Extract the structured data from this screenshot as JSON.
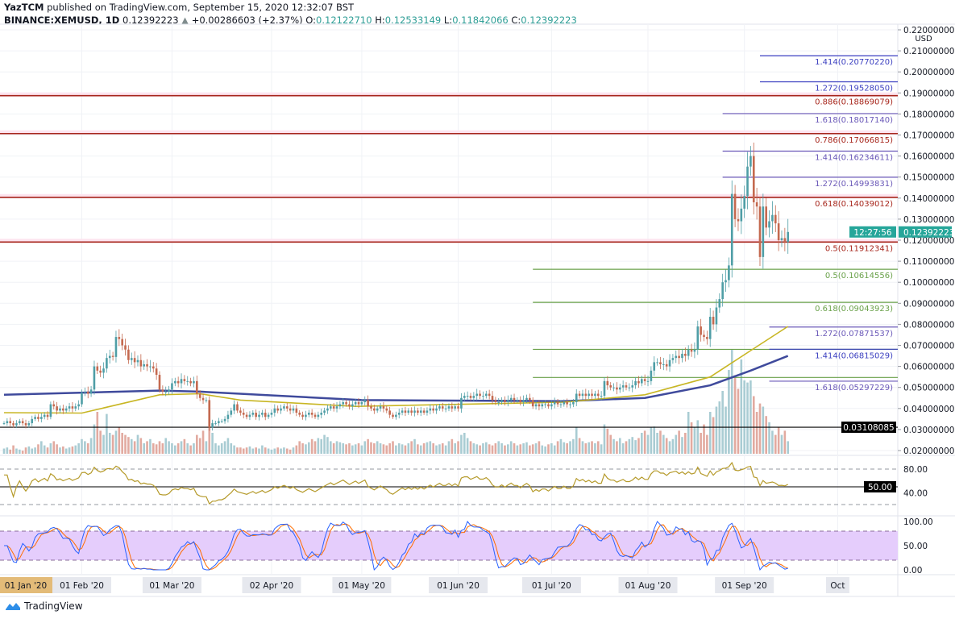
{
  "header": {
    "author": "YazTCM",
    "published": " published on TradingView.com, September 15, 2020 12:32:07 BST",
    "symbol": "BINANCE:XEMUSD, 1D",
    "last": "0.12392223",
    "change_icon": "triangle-up-icon",
    "change_glyph": "▲",
    "change": "+0.00286603 (+2.37%)",
    "o_label": "O:",
    "o": "0.12122710",
    "h_label": "H:",
    "h": "0.12533149",
    "l_label": "L:",
    "l": "0.11842066",
    "c_label": "C:",
    "c": "0.12392223"
  },
  "footer": {
    "brand": "TradingView"
  },
  "colors": {
    "up": "#4f9ea6",
    "down": "#c4694f",
    "vol_up": "#a9ccd3",
    "vol_down": "#e2aaa0",
    "ma_long": "#3f4a9c",
    "ma_short": "#c8b624",
    "rsi": "#b59a2a",
    "stoch_k": "#2962ff",
    "stoch_d": "#ff6d00",
    "stoch_band": "#e5cdfc",
    "fib_red": "#a7261c",
    "fib_green": "#6aa14a",
    "fib_blue": "#3b3fc0",
    "fib_purple": "#6a58b8",
    "last_price_tag": "#26a69a",
    "support_tag": "#000000"
  },
  "chart_data": [
    {
      "type": "candlestick",
      "title": "",
      "start_date": "2020-01-07",
      "interval": "1D",
      "ylabel": "USD",
      "ylim": [
        0.02,
        0.22
      ],
      "y_ticks": [
        "0.22000000",
        "0.21000000",
        "0.20000000",
        "0.19000000",
        "0.18000000",
        "0.17000000",
        "0.16000000",
        "0.15000000",
        "0.14000000",
        "0.13000000",
        "0.12000000",
        "0.11000000",
        "0.10000000",
        "0.09000000",
        "0.08000000",
        "0.07000000",
        "0.06000000",
        "0.05000000",
        "0.04000000",
        "0.03000000",
        "0.02000000"
      ],
      "x_ticks": [
        {
          "date": "2020-01-01",
          "label": "01 Jan '20",
          "highlight": true
        },
        {
          "date": "2020-02-01",
          "label": "01 Feb '20"
        },
        {
          "date": "2020-03-01",
          "label": "01 Mar '20"
        },
        {
          "date": "2020-04-02",
          "label": "02 Apr '20"
        },
        {
          "date": "2020-05-01",
          "label": "01 May '20"
        },
        {
          "date": "2020-06-01",
          "label": "01 Jun '20"
        },
        {
          "date": "2020-07-01",
          "label": "01 Jul '20"
        },
        {
          "date": "2020-08-01",
          "label": "01 Aug '20"
        },
        {
          "date": "2020-09-01",
          "label": "01 Sep '20"
        },
        {
          "date": "2020-10-01",
          "label": "Oct"
        }
      ],
      "grid": true,
      "close": [
        0.033,
        0.034,
        0.033,
        0.032,
        0.033,
        0.034,
        0.033,
        0.032,
        0.033,
        0.035,
        0.036,
        0.035,
        0.036,
        0.037,
        0.036,
        0.042,
        0.041,
        0.039,
        0.04,
        0.039,
        0.04,
        0.041,
        0.04,
        0.041,
        0.042,
        0.0476,
        0.048,
        0.047,
        0.049,
        0.06,
        0.058,
        0.057,
        0.059,
        0.064,
        0.065,
        0.0645,
        0.074,
        0.073,
        0.07,
        0.068,
        0.063,
        0.064,
        0.062,
        0.063,
        0.06,
        0.061,
        0.06,
        0.06,
        0.059,
        0.056,
        0.049,
        0.048,
        0.048,
        0.049,
        0.052,
        0.053,
        0.052,
        0.054,
        0.053,
        0.053,
        0.052,
        0.053,
        0.047,
        0.045,
        0.044,
        0.044,
        0.031,
        0.033,
        0.033,
        0.034,
        0.034,
        0.035,
        0.037,
        0.039,
        0.042,
        0.039,
        0.038,
        0.037,
        0.036,
        0.037,
        0.038,
        0.036,
        0.037,
        0.038,
        0.036,
        0.037,
        0.038,
        0.04,
        0.039,
        0.04,
        0.041,
        0.04,
        0.039,
        0.04,
        0.038,
        0.037,
        0.036,
        0.037,
        0.038,
        0.037,
        0.036,
        0.037,
        0.038,
        0.039,
        0.04,
        0.041,
        0.04,
        0.041,
        0.042,
        0.043,
        0.042,
        0.041,
        0.042,
        0.043,
        0.042,
        0.043,
        0.044,
        0.041,
        0.04,
        0.039,
        0.04,
        0.041,
        0.04,
        0.039,
        0.037,
        0.036,
        0.037,
        0.038,
        0.039,
        0.038,
        0.039,
        0.038,
        0.039,
        0.038,
        0.039,
        0.038,
        0.039,
        0.04,
        0.039,
        0.04,
        0.041,
        0.04,
        0.04,
        0.041,
        0.04,
        0.041,
        0.04,
        0.045,
        0.046,
        0.046,
        0.045,
        0.046,
        0.047,
        0.046,
        0.046,
        0.047,
        0.046,
        0.044,
        0.043,
        0.043,
        0.044,
        0.043,
        0.044,
        0.045,
        0.044,
        0.044,
        0.043,
        0.044,
        0.045,
        0.044,
        0.041,
        0.042,
        0.041,
        0.042,
        0.042,
        0.041,
        0.042,
        0.043,
        0.042,
        0.042,
        0.043,
        0.042,
        0.042,
        0.043,
        0.047,
        0.046,
        0.047,
        0.046,
        0.047,
        0.046,
        0.047,
        0.046,
        0.046,
        0.053,
        0.051,
        0.05,
        0.05,
        0.049,
        0.05,
        0.051,
        0.05,
        0.05,
        0.051,
        0.053,
        0.052,
        0.054,
        0.053,
        0.053,
        0.058,
        0.062,
        0.062,
        0.061,
        0.061,
        0.06,
        0.063,
        0.064,
        0.065,
        0.064,
        0.066,
        0.065,
        0.068,
        0.067,
        0.068,
        0.079,
        0.075,
        0.074,
        0.073,
        0.0836,
        0.08,
        0.088,
        0.092,
        0.1,
        0.101,
        0.108,
        0.142,
        0.13,
        0.129,
        0.135,
        0.141,
        0.155,
        0.16,
        0.138,
        0.136,
        0.112,
        0.136,
        0.126,
        0.129,
        0.132,
        0.128,
        0.12,
        0.121,
        0.1191,
        0.1239
      ],
      "volume_relative": [
        5,
        6,
        4,
        8,
        5,
        4,
        3,
        6,
        7,
        5,
        6,
        9,
        12,
        8,
        6,
        10,
        12,
        9,
        6,
        7,
        5,
        6,
        7,
        8,
        10,
        14,
        12,
        10,
        15,
        28,
        40,
        22,
        18,
        38,
        20,
        18,
        22,
        25,
        20,
        18,
        16,
        14,
        12,
        18,
        15,
        10,
        12,
        14,
        10,
        9,
        12,
        10,
        15,
        12,
        10,
        8,
        10,
        12,
        14,
        10,
        8,
        10,
        18,
        15,
        22,
        12,
        50,
        20,
        10,
        8,
        10,
        12,
        15,
        10,
        8,
        6,
        6,
        5,
        6,
        7,
        5,
        6,
        5,
        8,
        6,
        5,
        4,
        5,
        6,
        5,
        6,
        5,
        4,
        6,
        8,
        12,
        10,
        9,
        11,
        14,
        12,
        15,
        14,
        18,
        16,
        12,
        10,
        12,
        11,
        10,
        9,
        10,
        8,
        9,
        10,
        8,
        12,
        14,
        11,
        10,
        12,
        10,
        9,
        8,
        10,
        12,
        8,
        10,
        9,
        8,
        10,
        12,
        14,
        9,
        8,
        10,
        11,
        12,
        10,
        8,
        9,
        10,
        8,
        12,
        14,
        10,
        12,
        18,
        20,
        15,
        12,
        10,
        9,
        8,
        10,
        11,
        9,
        8,
        10,
        12,
        10,
        8,
        9,
        12,
        10,
        8,
        9,
        10,
        11,
        8,
        9,
        10,
        12,
        8,
        7,
        9,
        10,
        8,
        12,
        14,
        11,
        10,
        12,
        14,
        25,
        15,
        12,
        10,
        11,
        12,
        10,
        12,
        9,
        28,
        24,
        18,
        14,
        12,
        15,
        10,
        12,
        14,
        16,
        13,
        15,
        20,
        22,
        18,
        25,
        26,
        20,
        22,
        18,
        15,
        12,
        14,
        18,
        22,
        16,
        20,
        40,
        30,
        25,
        32,
        20,
        28,
        18,
        40,
        35,
        45,
        50,
        60,
        45,
        80,
        100,
        75,
        62,
        90,
        70,
        68,
        70,
        55,
        40,
        48,
        45,
        36,
        30,
        22,
        18,
        25,
        18,
        22,
        12
      ],
      "moving_averages": [
        {
          "color_key": "ma_long",
          "points": [
            [
              "2020-01-07",
              0.0465
            ],
            [
              "2020-02-26",
              0.0485
            ],
            [
              "2020-03-10",
              0.048
            ],
            [
              "2020-05-01",
              0.044
            ],
            [
              "2020-07-05",
              0.0435
            ],
            [
              "2020-07-31",
              0.045
            ],
            [
              "2020-08-21",
              0.051
            ],
            [
              "2020-09-03",
              0.058
            ],
            [
              "2020-09-15",
              0.065
            ]
          ]
        },
        {
          "color_key": "ma_short",
          "points": [
            [
              "2020-01-07",
              0.038
            ],
            [
              "2020-02-01",
              0.0378
            ],
            [
              "2020-02-26",
              0.0465
            ],
            [
              "2020-03-10",
              0.047
            ],
            [
              "2020-03-23",
              0.044
            ],
            [
              "2020-04-29",
              0.041
            ],
            [
              "2020-07-05",
              0.043
            ],
            [
              "2020-07-31",
              0.0465
            ],
            [
              "2020-08-21",
              0.055
            ],
            [
              "2020-09-03",
              0.0675
            ],
            [
              "2020-09-15",
              0.079
            ]
          ]
        }
      ],
      "horizontal_levels": [
        {
          "label": "1.414(0.20770220)",
          "price": 0.2077022,
          "color_key": "fib_blue",
          "start": "2020-09-06",
          "kind": "extension"
        },
        {
          "label": "1.272(0.19528050)",
          "price": 0.1952805,
          "color_key": "fib_blue",
          "start": "2020-09-06",
          "kind": "extension"
        },
        {
          "label": "0.886(0.18869079)",
          "price": 0.18869079,
          "color_key": "fib_red",
          "start": null,
          "kind": "retracement"
        },
        {
          "label": "1.618(0.18017140)",
          "price": 0.1801714,
          "color_key": "fib_purple",
          "start": "2020-08-25",
          "kind": "extension"
        },
        {
          "label": "0.786(0.17066815)",
          "price": 0.17066815,
          "color_key": "fib_red",
          "start": null,
          "kind": "retracement"
        },
        {
          "label": "1.414(0.16234611)",
          "price": 0.16234611,
          "color_key": "fib_purple",
          "start": "2020-08-25",
          "kind": "extension"
        },
        {
          "label": "1.272(0.14993831)",
          "price": 0.14993831,
          "color_key": "fib_purple",
          "start": "2020-08-25",
          "kind": "extension"
        },
        {
          "label": "0.618(0.14039012)",
          "price": 0.14039012,
          "color_key": "fib_red",
          "start": null,
          "kind": "retracement"
        },
        {
          "label": "0.5(0.11912341)",
          "price": 0.11912341,
          "color_key": "fib_red",
          "start": null,
          "kind": "retracement"
        },
        {
          "label": "0.5(0.10614556)",
          "price": 0.10614556,
          "color_key": "fib_green",
          "start": "2020-06-25",
          "kind": "support"
        },
        {
          "label": "0.618(0.09043923)",
          "price": 0.09043923,
          "color_key": "fib_green",
          "start": "2020-06-25",
          "kind": "support"
        },
        {
          "label": "1.272(0.07871537)",
          "price": 0.07871537,
          "color_key": "fib_purple",
          "start": "2020-09-09",
          "kind": "extension"
        },
        {
          "label": "",
          "price": 0.0681,
          "color_key": "fib_green",
          "start": "2020-06-25",
          "kind": "support"
        },
        {
          "label": "1.414(0.06815029)",
          "price": 0.06815029,
          "color_key": "fib_blue",
          "start": "2020-09-09",
          "kind": "extension"
        },
        {
          "label": "",
          "price": 0.05474,
          "color_key": "fib_green",
          "start": "2020-06-25",
          "kind": "support"
        },
        {
          "label": "1.618(0.05297229)",
          "price": 0.05297229,
          "color_key": "fib_purple",
          "start": "2020-09-09",
          "kind": "extension"
        },
        {
          "label": "",
          "price": 0.03108085,
          "color_key": "support_tag",
          "start": null,
          "kind": "line"
        }
      ],
      "axis_tags": {
        "currency": "USD",
        "last_price": "0.12392223",
        "countdown": "12:27:56",
        "support": "0.03108085"
      }
    },
    {
      "type": "line",
      "indicator": "RSI",
      "y_ticks": [
        "80.00",
        "40.00"
      ],
      "current_tag": "50.00",
      "bands": [
        80,
        20
      ],
      "reference": 50
    },
    {
      "type": "line",
      "indicator": "Stochastic RSI",
      "y_ticks": [
        "100.00",
        "50.00",
        "0.00"
      ],
      "bands": [
        80,
        20
      ]
    }
  ]
}
